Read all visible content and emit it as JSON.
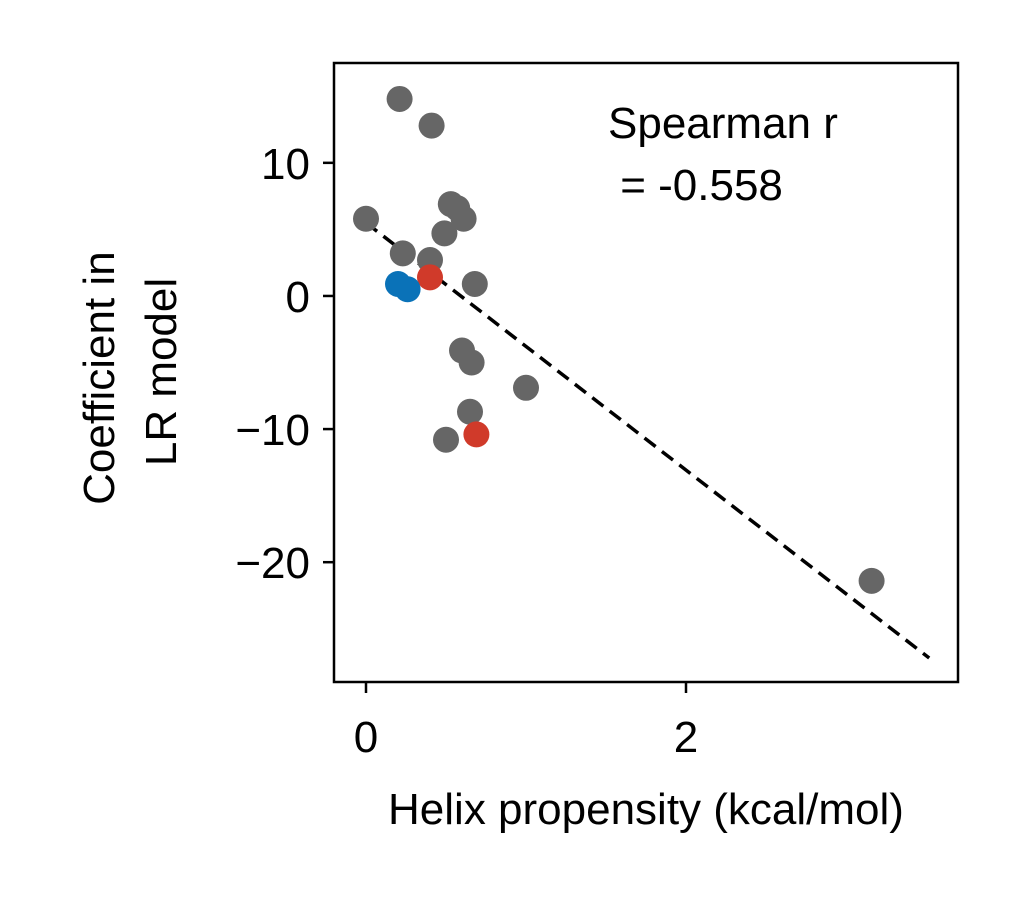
{
  "chart_data": {
    "type": "scatter",
    "title": "",
    "xlabel": "Helix propensity (kcal/mol)",
    "ylabel_lines": [
      "Coefficient in",
      "LR model"
    ],
    "xlim": [
      -0.2,
      3.7
    ],
    "ylim": [
      -29,
      17.5
    ],
    "xticks": [
      0,
      2
    ],
    "yticks": [
      10,
      0,
      -10,
      -20
    ],
    "xtick_labels": [
      "0",
      "2"
    ],
    "ytick_labels": [
      "10",
      "0",
      "−10",
      "−20"
    ],
    "grid": false,
    "annotation_lines": [
      "Spearman r",
      " = -0.558"
    ],
    "fit_line": {
      "style": "dashed",
      "color": "#000000",
      "x": [
        0,
        3.52
      ],
      "y": [
        5.5,
        -27.2
      ]
    },
    "series": [
      {
        "color": "#666666",
        "points": [
          [
            0.21,
            14.8
          ],
          [
            0.41,
            12.8
          ],
          [
            0.0,
            5.8
          ],
          [
            0.53,
            6.9
          ],
          [
            0.57,
            6.6
          ],
          [
            0.61,
            5.8
          ],
          [
            0.49,
            4.7
          ],
          [
            0.23,
            3.2
          ],
          [
            0.4,
            2.7
          ],
          [
            0.68,
            0.9
          ],
          [
            0.6,
            -4.1
          ],
          [
            0.66,
            -5.0
          ],
          [
            1.0,
            -6.9
          ],
          [
            0.65,
            -8.7
          ],
          [
            0.5,
            -10.8
          ],
          [
            3.16,
            -21.4
          ]
        ]
      },
      {
        "color": "#d03a2a",
        "points": [
          [
            0.4,
            1.4
          ],
          [
            0.69,
            -10.4
          ]
        ]
      },
      {
        "color": "#0a72b8",
        "points": [
          [
            0.2,
            0.9
          ],
          [
            0.26,
            0.5
          ]
        ]
      }
    ]
  }
}
